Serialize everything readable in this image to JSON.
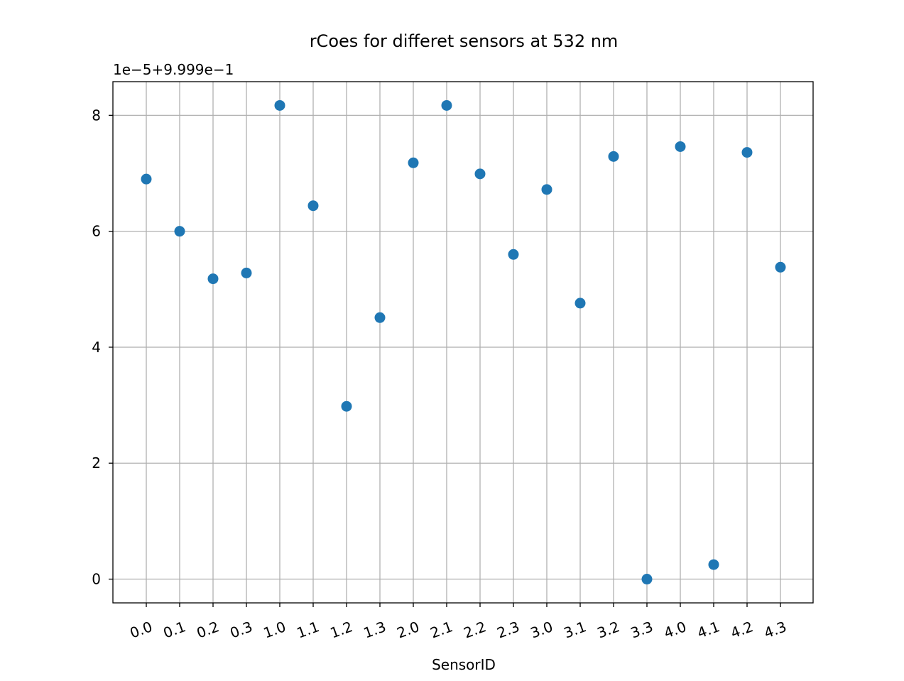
{
  "chart_data": {
    "type": "scatter",
    "title": "rCoes for differet sensors at 532 nm",
    "xlabel": "SensorID",
    "ylabel": "",
    "offset_label": "1e−5+9.999e−1",
    "categories": [
      "0.0",
      "0.1",
      "0.2",
      "0.3",
      "1.0",
      "1.1",
      "1.2",
      "1.3",
      "2.0",
      "2.1",
      "2.2",
      "2.3",
      "3.0",
      "3.1",
      "3.2",
      "3.3",
      "4.0",
      "4.1",
      "4.2",
      "4.3"
    ],
    "series": [
      {
        "values": [
          6.9,
          6.0,
          5.18,
          5.28,
          8.17,
          6.44,
          2.98,
          4.51,
          7.18,
          8.17,
          6.99,
          5.6,
          6.72,
          4.76,
          7.29,
          0.0,
          7.46,
          0.25,
          7.36,
          5.38
        ]
      }
    ],
    "yticks": [
      0,
      2,
      4,
      6,
      8
    ],
    "ylim": [
      -0.41,
      8.58
    ],
    "grid": true,
    "marker_color": "#1f77b4",
    "grid_color": "#b0b0b0",
    "xtick_rotation_deg": 20
  }
}
